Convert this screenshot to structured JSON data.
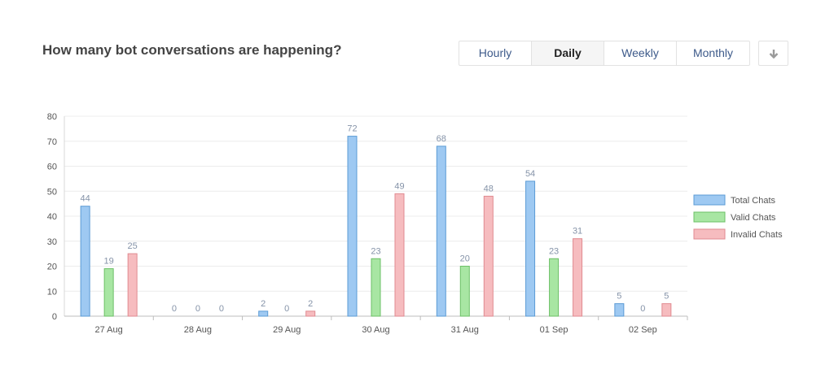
{
  "header": {
    "title": "How many bot conversations are happening?"
  },
  "toggle": {
    "tabs": [
      {
        "label": "Hourly",
        "active": false
      },
      {
        "label": "Daily",
        "active": true
      },
      {
        "label": "Weekly",
        "active": false
      },
      {
        "label": "Monthly",
        "active": false
      }
    ]
  },
  "download_icon": "arrow-down-icon",
  "chart_data": {
    "type": "bar",
    "categories": [
      "27 Aug",
      "28 Aug",
      "29 Aug",
      "30 Aug",
      "31 Aug",
      "01 Sep",
      "02 Sep"
    ],
    "series": [
      {
        "name": "Total Chats",
        "values": [
          44,
          0,
          2,
          72,
          68,
          54,
          5
        ],
        "fill": "#9ec9f2",
        "stroke": "#5b9bd5"
      },
      {
        "name": "Valid Chats",
        "values": [
          19,
          0,
          0,
          23,
          20,
          23,
          0
        ],
        "fill": "#a8e6a3",
        "stroke": "#6cc067"
      },
      {
        "name": "Invalid Chats",
        "values": [
          25,
          0,
          2,
          49,
          48,
          31,
          5
        ],
        "fill": "#f6bcbf",
        "stroke": "#e08a90"
      }
    ],
    "ylim": [
      0,
      80
    ],
    "yticks": [
      0,
      10,
      20,
      30,
      40,
      50,
      60,
      70,
      80
    ],
    "grid": true,
    "legend": "right"
  }
}
